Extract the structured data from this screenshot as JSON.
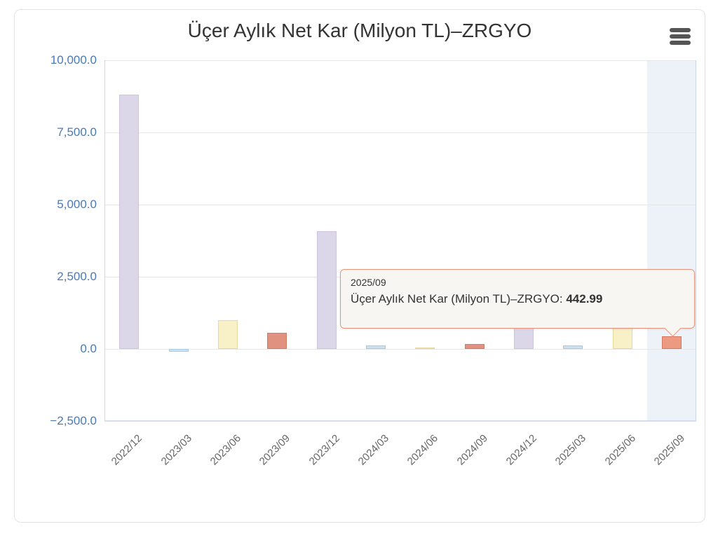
{
  "title": "Üçer Aylık Net Kar (Milyon TL)–ZRGYO",
  "menu": {
    "icon": "hamburger-menu"
  },
  "tooltip": {
    "header": "2025/09",
    "label": "Üçer Aylık Net Kar (Milyon TL)–ZRGYO",
    "separator": ": ",
    "value": "442.99"
  },
  "colors": {
    "axis_label": "#4a7ab5",
    "x_label": "#666666",
    "grid_line": "#e6e6e6",
    "axis_line": "#ccd6eb",
    "tooltip_border": "#e8947c",
    "tooltip_bg": "#f7f6f3",
    "title_text": "#333333",
    "menu_icon": "#555555"
  },
  "chart_data": {
    "type": "bar",
    "title": "Üçer Aylık Net Kar (Milyon TL)–ZRGYO",
    "xlabel": "",
    "ylabel": "",
    "categories": [
      "2022/12",
      "2023/03",
      "2023/06",
      "2023/09",
      "2023/12",
      "2024/03",
      "2024/06",
      "2024/09",
      "2024/12",
      "2025/03",
      "2025/06",
      "2025/09"
    ],
    "values": [
      8800,
      -100,
      1000,
      570,
      4080,
      130,
      40,
      160,
      2600,
      120,
      1900,
      442.99
    ],
    "bar_fills": [
      "#dcd6e9",
      "#cbe1f2",
      "#f8f0c6",
      "#e19180",
      "#dcd6e9",
      "#cbe1f2",
      "#f8f0c6",
      "#e19180",
      "#dcd6e9",
      "#cbe1f2",
      "#f8f0c6",
      "#ec9a82"
    ],
    "bar_borders": [
      "#cdc5e0",
      "#a9cbe4",
      "#e7d89d",
      "#cf7c66",
      "#cdc5e0",
      "#a9cbe4",
      "#e7d89d",
      "#cf7c66",
      "#cdc5e0",
      "#a9cbe4",
      "#e7d89d",
      "#d2785f"
    ],
    "ylim": [
      -2500,
      10000
    ],
    "yticks": [
      {
        "value": 10000,
        "label": "10,000.0"
      },
      {
        "value": 7500,
        "label": "7,500.0"
      },
      {
        "value": 5000,
        "label": "5,000.0"
      },
      {
        "value": 2500,
        "label": "2,500.0"
      },
      {
        "value": 0,
        "label": "0.0"
      },
      {
        "value": -2500,
        "label": "−2,500.0"
      }
    ],
    "grid": true,
    "legend": false,
    "highlight_band": {
      "category": "2025/09",
      "color": "#edf2f9"
    },
    "selected_point": {
      "category": "2025/09",
      "value": 442.99
    }
  }
}
